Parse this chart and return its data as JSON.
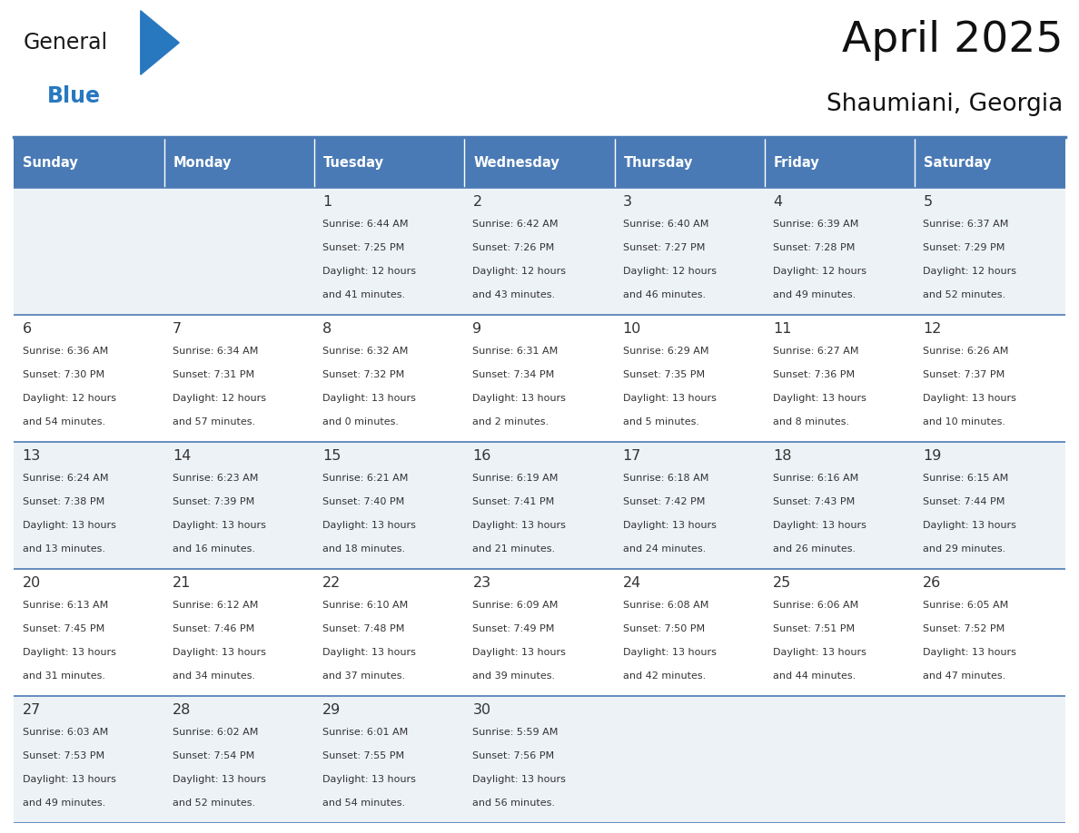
{
  "title": "April 2025",
  "subtitle": "Shaumiani, Georgia",
  "header_bg": "#4a7ab5",
  "header_text_color": "#ffffff",
  "cell_bg_light": "#edf2f7",
  "cell_bg_white": "#ffffff",
  "divider_color": "#4a7ab5",
  "text_color": "#333333",
  "day_headers": [
    "Sunday",
    "Monday",
    "Tuesday",
    "Wednesday",
    "Thursday",
    "Friday",
    "Saturday"
  ],
  "weeks": [
    [
      {
        "day": "",
        "sunrise": "",
        "sunset": "",
        "daylight": ""
      },
      {
        "day": "",
        "sunrise": "",
        "sunset": "",
        "daylight": ""
      },
      {
        "day": "1",
        "sunrise": "6:44 AM",
        "sunset": "7:25 PM",
        "daylight": "12 hours\nand 41 minutes."
      },
      {
        "day": "2",
        "sunrise": "6:42 AM",
        "sunset": "7:26 PM",
        "daylight": "12 hours\nand 43 minutes."
      },
      {
        "day": "3",
        "sunrise": "6:40 AM",
        "sunset": "7:27 PM",
        "daylight": "12 hours\nand 46 minutes."
      },
      {
        "day": "4",
        "sunrise": "6:39 AM",
        "sunset": "7:28 PM",
        "daylight": "12 hours\nand 49 minutes."
      },
      {
        "day": "5",
        "sunrise": "6:37 AM",
        "sunset": "7:29 PM",
        "daylight": "12 hours\nand 52 minutes."
      }
    ],
    [
      {
        "day": "6",
        "sunrise": "6:36 AM",
        "sunset": "7:30 PM",
        "daylight": "12 hours\nand 54 minutes."
      },
      {
        "day": "7",
        "sunrise": "6:34 AM",
        "sunset": "7:31 PM",
        "daylight": "12 hours\nand 57 minutes."
      },
      {
        "day": "8",
        "sunrise": "6:32 AM",
        "sunset": "7:32 PM",
        "daylight": "13 hours\nand 0 minutes."
      },
      {
        "day": "9",
        "sunrise": "6:31 AM",
        "sunset": "7:34 PM",
        "daylight": "13 hours\nand 2 minutes."
      },
      {
        "day": "10",
        "sunrise": "6:29 AM",
        "sunset": "7:35 PM",
        "daylight": "13 hours\nand 5 minutes."
      },
      {
        "day": "11",
        "sunrise": "6:27 AM",
        "sunset": "7:36 PM",
        "daylight": "13 hours\nand 8 minutes."
      },
      {
        "day": "12",
        "sunrise": "6:26 AM",
        "sunset": "7:37 PM",
        "daylight": "13 hours\nand 10 minutes."
      }
    ],
    [
      {
        "day": "13",
        "sunrise": "6:24 AM",
        "sunset": "7:38 PM",
        "daylight": "13 hours\nand 13 minutes."
      },
      {
        "day": "14",
        "sunrise": "6:23 AM",
        "sunset": "7:39 PM",
        "daylight": "13 hours\nand 16 minutes."
      },
      {
        "day": "15",
        "sunrise": "6:21 AM",
        "sunset": "7:40 PM",
        "daylight": "13 hours\nand 18 minutes."
      },
      {
        "day": "16",
        "sunrise": "6:19 AM",
        "sunset": "7:41 PM",
        "daylight": "13 hours\nand 21 minutes."
      },
      {
        "day": "17",
        "sunrise": "6:18 AM",
        "sunset": "7:42 PM",
        "daylight": "13 hours\nand 24 minutes."
      },
      {
        "day": "18",
        "sunrise": "6:16 AM",
        "sunset": "7:43 PM",
        "daylight": "13 hours\nand 26 minutes."
      },
      {
        "day": "19",
        "sunrise": "6:15 AM",
        "sunset": "7:44 PM",
        "daylight": "13 hours\nand 29 minutes."
      }
    ],
    [
      {
        "day": "20",
        "sunrise": "6:13 AM",
        "sunset": "7:45 PM",
        "daylight": "13 hours\nand 31 minutes."
      },
      {
        "day": "21",
        "sunrise": "6:12 AM",
        "sunset": "7:46 PM",
        "daylight": "13 hours\nand 34 minutes."
      },
      {
        "day": "22",
        "sunrise": "6:10 AM",
        "sunset": "7:48 PM",
        "daylight": "13 hours\nand 37 minutes."
      },
      {
        "day": "23",
        "sunrise": "6:09 AM",
        "sunset": "7:49 PM",
        "daylight": "13 hours\nand 39 minutes."
      },
      {
        "day": "24",
        "sunrise": "6:08 AM",
        "sunset": "7:50 PM",
        "daylight": "13 hours\nand 42 minutes."
      },
      {
        "day": "25",
        "sunrise": "6:06 AM",
        "sunset": "7:51 PM",
        "daylight": "13 hours\nand 44 minutes."
      },
      {
        "day": "26",
        "sunrise": "6:05 AM",
        "sunset": "7:52 PM",
        "daylight": "13 hours\nand 47 minutes."
      }
    ],
    [
      {
        "day": "27",
        "sunrise": "6:03 AM",
        "sunset": "7:53 PM",
        "daylight": "13 hours\nand 49 minutes."
      },
      {
        "day": "28",
        "sunrise": "6:02 AM",
        "sunset": "7:54 PM",
        "daylight": "13 hours\nand 52 minutes."
      },
      {
        "day": "29",
        "sunrise": "6:01 AM",
        "sunset": "7:55 PM",
        "daylight": "13 hours\nand 54 minutes."
      },
      {
        "day": "30",
        "sunrise": "5:59 AM",
        "sunset": "7:56 PM",
        "daylight": "13 hours\nand 56 minutes."
      },
      {
        "day": "",
        "sunrise": "",
        "sunset": "",
        "daylight": ""
      },
      {
        "day": "",
        "sunrise": "",
        "sunset": "",
        "daylight": ""
      },
      {
        "day": "",
        "sunrise": "",
        "sunset": "",
        "daylight": ""
      }
    ]
  ],
  "logo_general_color": "#1a1a1a",
  "logo_blue_color": "#2878c0",
  "logo_triangle_color": "#2878c0",
  "title_fontsize": 34,
  "subtitle_fontsize": 19,
  "header_fontsize": 10.5,
  "day_num_fontsize": 11.5,
  "cell_text_fontsize": 8.0
}
